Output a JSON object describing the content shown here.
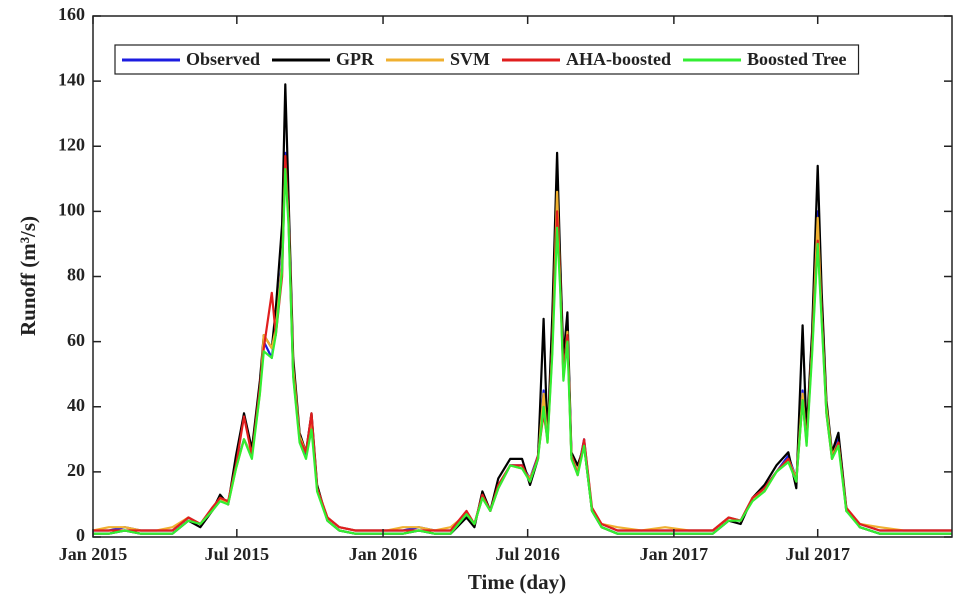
{
  "chart_data": {
    "type": "line",
    "xlabel": "Time (day)",
    "ylabel": "Runoff (m³/s)",
    "x": [
      0,
      20,
      40,
      60,
      80,
      100,
      120,
      135,
      150,
      160,
      170,
      180,
      190,
      200,
      210,
      215,
      225,
      230,
      238,
      242,
      246,
      252,
      260,
      268,
      275,
      282,
      295,
      310,
      330,
      350,
      370,
      390,
      410,
      430,
      450,
      470,
      480,
      490,
      500,
      510,
      525,
      540,
      550,
      560,
      567,
      572,
      578,
      584,
      588,
      592,
      597,
      602,
      610,
      618,
      628,
      640,
      660,
      690,
      720,
      750,
      780,
      800,
      815,
      830,
      845,
      860,
      875,
      885,
      893,
      898,
      905,
      912,
      917,
      923,
      930,
      938,
      948,
      965,
      990,
      1020,
      1050,
      1081
    ],
    "series": [
      {
        "name": "Observed",
        "color": "#1c1ce0",
        "values": [
          2,
          2,
          3,
          2,
          2,
          2,
          6,
          4,
          8,
          12,
          10,
          22,
          30,
          25,
          45,
          60,
          55,
          65,
          85,
          118,
          100,
          50,
          30,
          25,
          35,
          15,
          6,
          3,
          2,
          2,
          2,
          2,
          3,
          2,
          2,
          7,
          4,
          12,
          8,
          15,
          22,
          22,
          18,
          25,
          45,
          30,
          60,
          110,
          80,
          50,
          65,
          25,
          20,
          30,
          8,
          4,
          2,
          2,
          2,
          2,
          2,
          6,
          5,
          12,
          15,
          20,
          25,
          18,
          45,
          30,
          60,
          100,
          70,
          40,
          25,
          30,
          8,
          4,
          2,
          2,
          2,
          2
        ]
      },
      {
        "name": "GPR",
        "color": "#000000",
        "values": [
          1,
          1,
          2,
          1,
          1,
          1,
          5,
          3,
          8,
          13,
          10,
          25,
          38,
          27,
          48,
          62,
          58,
          70,
          96,
          139,
          105,
          55,
          32,
          26,
          38,
          16,
          5,
          2,
          1,
          1,
          1,
          1,
          2,
          1,
          1,
          6,
          3,
          14,
          8,
          18,
          24,
          24,
          16,
          24,
          67,
          30,
          68,
          118,
          85,
          55,
          69,
          26,
          22,
          28,
          8,
          3,
          1,
          1,
          1,
          1,
          1,
          5,
          4,
          12,
          16,
          22,
          26,
          15,
          65,
          32,
          63,
          114,
          75,
          42,
          26,
          32,
          9,
          3,
          1,
          1,
          1,
          1
        ]
      },
      {
        "name": "SVM",
        "color": "#f0b030",
        "values": [
          2,
          3,
          3,
          2,
          2,
          3,
          6,
          4,
          8,
          12,
          10,
          21,
          30,
          25,
          44,
          62,
          58,
          64,
          84,
          115,
          98,
          52,
          31,
          26,
          36,
          15,
          6,
          3,
          2,
          2,
          2,
          3,
          3,
          2,
          3,
          7,
          4,
          12,
          8,
          15,
          22,
          21,
          18,
          24,
          44,
          29,
          58,
          106,
          78,
          49,
          63,
          25,
          20,
          29,
          8,
          4,
          3,
          2,
          3,
          2,
          2,
          6,
          5,
          12,
          14,
          20,
          24,
          18,
          44,
          29,
          58,
          98,
          68,
          40,
          25,
          29,
          8,
          4,
          3,
          2,
          2,
          2
        ]
      },
      {
        "name": "AHA-boosted",
        "color": "#e01e1e",
        "values": [
          2,
          2,
          2,
          2,
          2,
          2,
          6,
          4,
          9,
          12,
          11,
          22,
          37,
          25,
          46,
          58,
          75,
          62,
          80,
          117,
          98,
          50,
          30,
          26,
          38,
          15,
          6,
          3,
          2,
          2,
          2,
          2,
          2,
          2,
          2,
          8,
          4,
          13,
          8,
          16,
          22,
          22,
          17,
          25,
          38,
          30,
          58,
          100,
          78,
          50,
          62,
          25,
          19,
          30,
          9,
          4,
          2,
          2,
          2,
          2,
          2,
          6,
          5,
          12,
          15,
          20,
          24,
          17,
          42,
          29,
          58,
          91,
          68,
          38,
          24,
          29,
          9,
          4,
          2,
          2,
          2,
          2
        ]
      },
      {
        "name": "Boosted Tree",
        "color": "#33ee33",
        "values": [
          1,
          1,
          2,
          1,
          1,
          1,
          5,
          4,
          8,
          11,
          10,
          21,
          30,
          24,
          44,
          57,
          55,
          62,
          82,
          113,
          96,
          49,
          29,
          24,
          33,
          14,
          5,
          2,
          1,
          1,
          1,
          1,
          2,
          1,
          1,
          7,
          4,
          12,
          8,
          15,
          22,
          21,
          17,
          24,
          40,
          29,
          56,
          95,
          76,
          48,
          60,
          24,
          19,
          28,
          8,
          3,
          1,
          1,
          1,
          1,
          1,
          5,
          5,
          11,
          14,
          20,
          23,
          17,
          42,
          28,
          56,
          90,
          66,
          38,
          24,
          28,
          8,
          3,
          1,
          1,
          1,
          1
        ]
      }
    ],
    "xlim": [
      0,
      1081
    ],
    "xticks": [
      {
        "value": 0,
        "label": "Jan 2015"
      },
      {
        "value": 181,
        "label": "Jul 2015"
      },
      {
        "value": 365,
        "label": "Jan 2016"
      },
      {
        "value": 547,
        "label": "Jul 2016"
      },
      {
        "value": 731,
        "label": "Jan 2017"
      },
      {
        "value": 912,
        "label": "Jul 2017"
      }
    ],
    "ylim": [
      0,
      160
    ],
    "yticks": [
      0,
      20,
      40,
      60,
      80,
      100,
      120,
      140,
      160
    ],
    "legend": "top"
  }
}
